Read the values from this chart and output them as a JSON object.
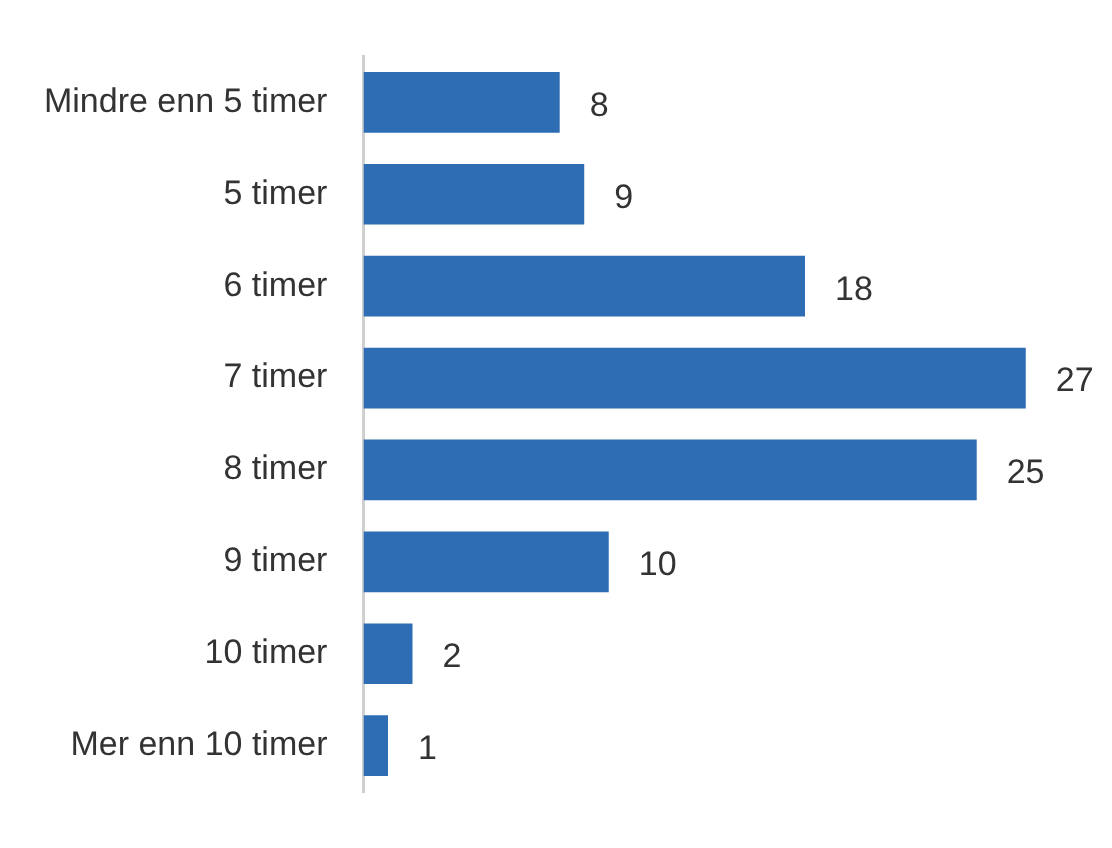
{
  "chart_data": {
    "type": "bar",
    "orientation": "horizontal",
    "categories": [
      "Mindre enn 5 timer",
      "5 timer",
      "6 timer",
      "7 timer",
      "8 timer",
      "9 timer",
      "10 timer",
      "Mer enn 10 timer"
    ],
    "values": [
      8,
      9,
      18,
      27,
      25,
      10,
      2,
      1
    ],
    "color": "#2e6db4",
    "data_labels": true
  }
}
